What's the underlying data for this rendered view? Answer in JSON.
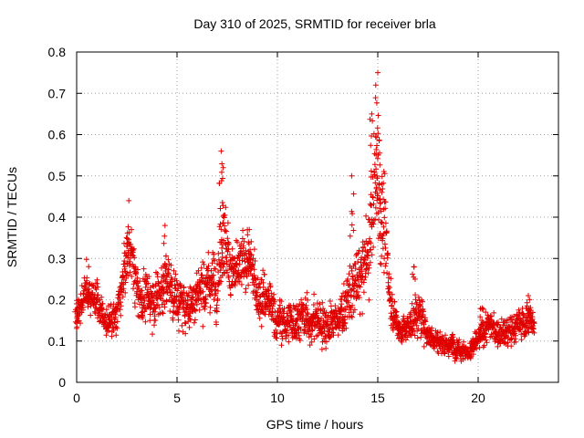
{
  "chart_data": {
    "type": "scatter",
    "title": "Day 310 of 2025, SRMTID for receiver brla",
    "xlabel": "GPS time / hours",
    "ylabel": "SRMTID / TECUs",
    "xlim": [
      0,
      24
    ],
    "ylim": [
      0,
      0.8
    ],
    "xticks": [
      0,
      5,
      10,
      15,
      20
    ],
    "yticks": [
      0,
      0.1,
      0.2,
      0.3,
      0.4,
      0.5,
      0.6,
      0.7,
      0.8
    ],
    "xtick_labels": [
      "0",
      "5",
      "10",
      "15",
      "20"
    ],
    "ytick_labels": [
      "0",
      "0.1",
      "0.2",
      "0.3",
      "0.4",
      "0.5",
      "0.6",
      "0.7",
      "0.8"
    ],
    "grid": true,
    "marker": "+",
    "marker_color": "#e00000",
    "series": [
      {
        "name": "SRMTID",
        "envelope_hours": [
          0.0,
          0.5,
          1.0,
          1.5,
          2.0,
          2.5,
          2.7,
          3.0,
          3.5,
          4.0,
          4.5,
          5.0,
          5.5,
          6.0,
          6.5,
          7.0,
          7.3,
          7.6,
          8.0,
          8.5,
          9.0,
          9.5,
          10.0,
          10.5,
          11.0,
          11.5,
          12.0,
          12.5,
          13.0,
          13.5,
          14.0,
          14.5,
          14.8,
          15.0,
          15.3,
          15.6,
          16.0,
          16.5,
          17.0,
          17.5,
          18.0,
          18.5,
          19.0,
          19.5,
          20.0,
          20.5,
          21.0,
          21.5,
          22.0,
          22.5,
          22.8
        ],
        "envelope_center": [
          0.16,
          0.22,
          0.2,
          0.14,
          0.16,
          0.3,
          0.33,
          0.22,
          0.2,
          0.21,
          0.25,
          0.2,
          0.18,
          0.22,
          0.24,
          0.25,
          0.38,
          0.28,
          0.26,
          0.3,
          0.22,
          0.2,
          0.15,
          0.14,
          0.16,
          0.15,
          0.15,
          0.14,
          0.15,
          0.2,
          0.24,
          0.3,
          0.45,
          0.5,
          0.38,
          0.22,
          0.13,
          0.13,
          0.17,
          0.12,
          0.1,
          0.09,
          0.09,
          0.07,
          0.1,
          0.14,
          0.12,
          0.12,
          0.14,
          0.15,
          0.15
        ],
        "envelope_spread": [
          0.05,
          0.05,
          0.05,
          0.04,
          0.05,
          0.07,
          0.07,
          0.07,
          0.07,
          0.07,
          0.08,
          0.07,
          0.06,
          0.07,
          0.08,
          0.08,
          0.12,
          0.08,
          0.08,
          0.08,
          0.07,
          0.07,
          0.06,
          0.06,
          0.06,
          0.06,
          0.06,
          0.06,
          0.05,
          0.08,
          0.09,
          0.12,
          0.18,
          0.2,
          0.12,
          0.08,
          0.04,
          0.04,
          0.06,
          0.04,
          0.03,
          0.03,
          0.03,
          0.03,
          0.03,
          0.04,
          0.04,
          0.04,
          0.04,
          0.05,
          0.04
        ],
        "points_per_hour": 110,
        "peaks": [
          {
            "x": 0.0,
            "y": 0.19
          },
          {
            "x": 0.6,
            "y": 0.28
          },
          {
            "x": 2.6,
            "y": 0.44
          },
          {
            "x": 4.4,
            "y": 0.38
          },
          {
            "x": 7.2,
            "y": 0.56
          },
          {
            "x": 7.3,
            "y": 0.52
          },
          {
            "x": 8.6,
            "y": 0.37
          },
          {
            "x": 13.7,
            "y": 0.5
          },
          {
            "x": 14.7,
            "y": 0.65
          },
          {
            "x": 14.9,
            "y": 0.72
          },
          {
            "x": 15.0,
            "y": 0.75
          },
          {
            "x": 15.2,
            "y": 0.48
          },
          {
            "x": 16.8,
            "y": 0.28
          },
          {
            "x": 20.2,
            "y": 0.18
          },
          {
            "x": 22.5,
            "y": 0.21
          }
        ]
      }
    ]
  }
}
